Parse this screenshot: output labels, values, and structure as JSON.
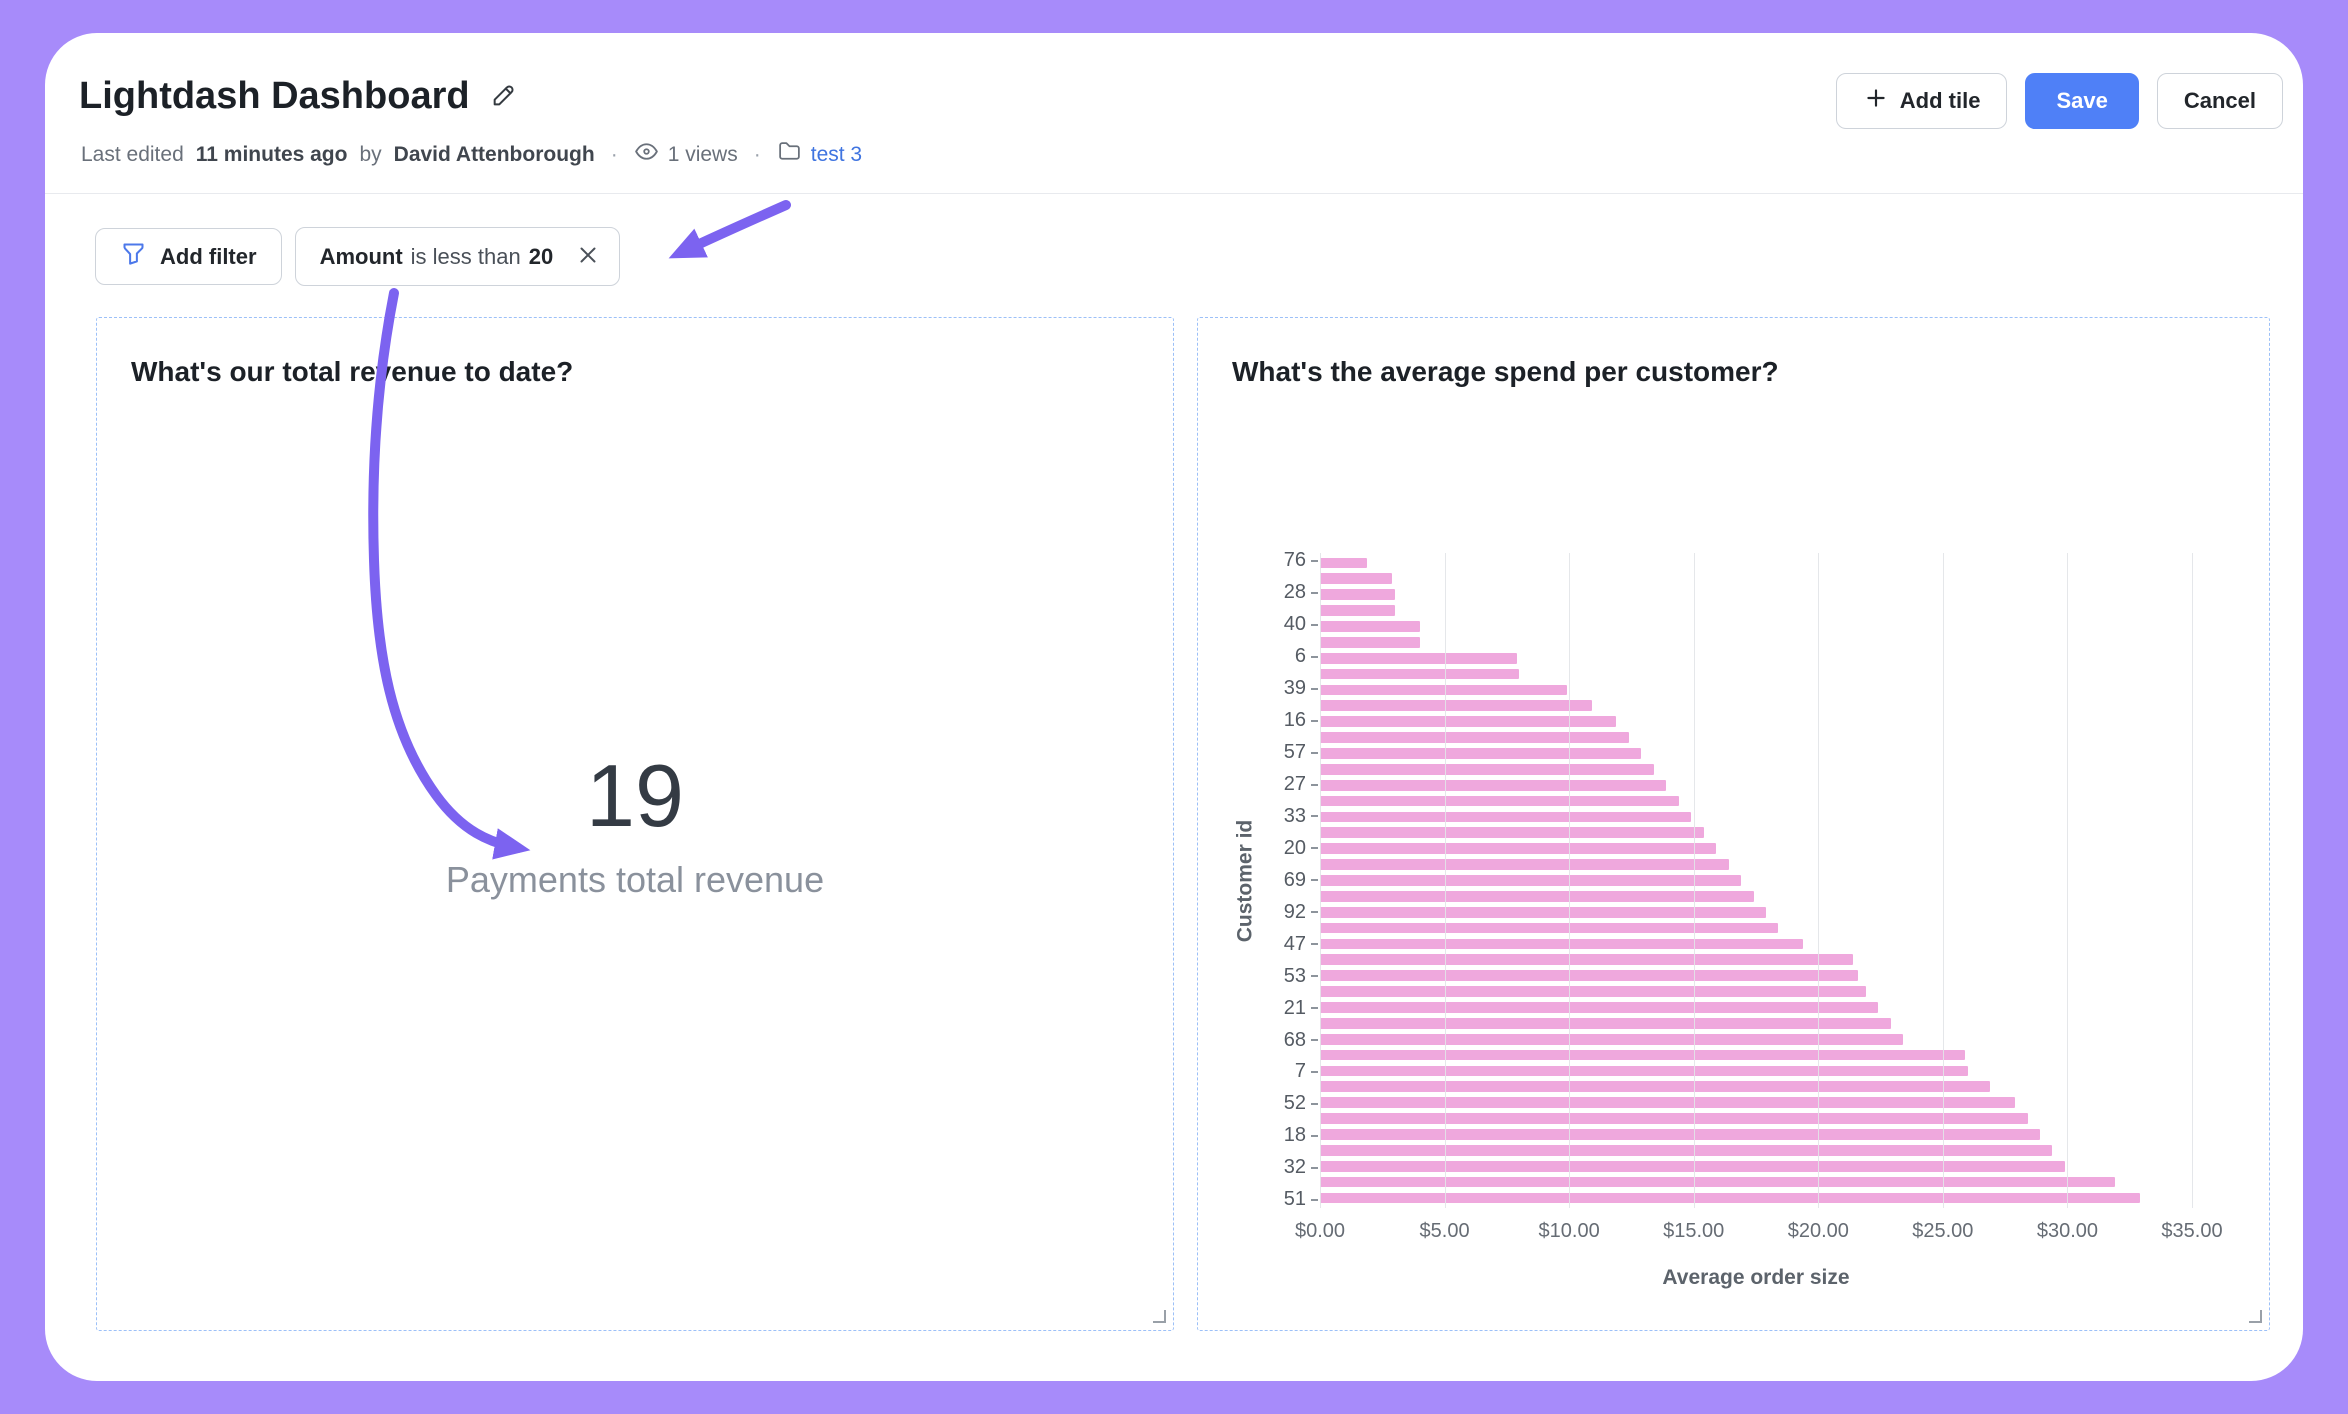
{
  "colors": {
    "background": "#a78bfa",
    "save": "#4f80f7",
    "link": "#3f74e0",
    "arrow": "#7c63f0",
    "tile_border": "#9cc0f8"
  },
  "header": {
    "title": "Lightdash Dashboard",
    "last_edited_prefix": "Last edited",
    "last_edited_time": "11 minutes ago",
    "by_label": "by",
    "author": "David Attenborough",
    "separator": "·",
    "views": "1 views",
    "space_name": "test 3",
    "add_tile_label": "Add tile",
    "save_label": "Save",
    "cancel_label": "Cancel"
  },
  "filter_bar": {
    "add_filter_label": "Add filter",
    "chip_field": "Amount",
    "chip_operator": "is less than",
    "chip_value": "20"
  },
  "tiles": {
    "revenue": {
      "title": "What's our total revenue to date?",
      "big_number": "19",
      "big_number_label": "Payments total revenue"
    },
    "spend": {
      "title": "What's the average spend per customer?"
    }
  },
  "chart_data": {
    "type": "bar",
    "orientation": "horizontal",
    "title": "What's the average spend per customer?",
    "xlabel": "Average order size",
    "ylabel": "Customer id",
    "xlim": [
      0,
      35
    ],
    "x_tick_labels": [
      "$0.00",
      "$5.00",
      "$10.00",
      "$15.00",
      "$20.00",
      "$25.00",
      "$30.00",
      "$35.00"
    ],
    "grid": true,
    "legend": "none",
    "bar_color": "#efa8dd",
    "categories": [
      "76",
      "",
      "28",
      "",
      "40",
      "",
      "6",
      "",
      "39",
      "",
      "16",
      "",
      "57",
      "",
      "27",
      "",
      "33",
      "",
      "20",
      "",
      "69",
      "",
      "92",
      "",
      "47",
      "",
      "53",
      "",
      "21",
      "",
      "68",
      "",
      "7",
      "",
      "52",
      "",
      "18",
      "",
      "32",
      "",
      "51"
    ],
    "values": [
      1.9,
      2.9,
      3.0,
      3.0,
      4.0,
      4.0,
      7.9,
      8.0,
      9.9,
      10.9,
      11.9,
      12.4,
      12.9,
      13.4,
      13.9,
      14.4,
      14.9,
      15.4,
      15.9,
      16.4,
      16.9,
      17.4,
      17.9,
      18.4,
      19.4,
      21.4,
      21.6,
      21.9,
      22.4,
      22.9,
      23.4,
      25.9,
      26.0,
      26.9,
      27.9,
      28.4,
      28.9,
      29.4,
      29.9,
      31.9,
      32.9
    ]
  }
}
